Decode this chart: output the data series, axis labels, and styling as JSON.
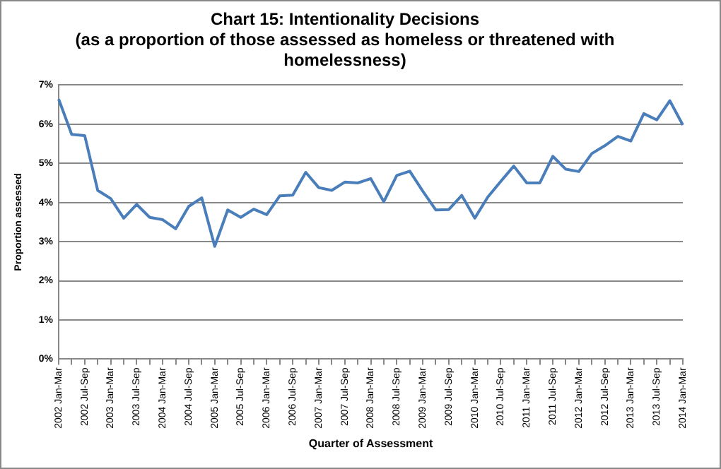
{
  "chart_data": {
    "type": "line",
    "title": "Chart 15: Intentionality Decisions",
    "subtitle": "(as a proportion of those assessed as homeless or threatened with homelessness)",
    "xlabel": "Quarter of Assessment",
    "ylabel": "Proportion assessed",
    "categories": [
      "2002 Jan-Mar",
      null,
      "2002 Jul-Sep",
      null,
      "2003 Jan-Mar",
      null,
      "2003 Jul-Sep",
      null,
      "2004 Jan-Mar",
      null,
      "2004 Jul-Sep",
      null,
      "2005 Jan-Mar",
      null,
      "2005 Jul-Sep",
      null,
      "2006 Jan-Mar",
      null,
      "2006 Jul-Sep",
      null,
      "2007 Jan-Mar",
      null,
      "2007 Jul-Sep",
      null,
      "2008 Jan-Mar",
      null,
      "2008 Jul-Sep",
      null,
      "2009 Jan-Mar",
      null,
      "2009 Jul-Sep",
      null,
      "2010 Jan-Mar",
      null,
      "2010 Jul-Sep",
      null,
      "2011 Jan-Mar",
      null,
      "2011 Jul-Sep",
      null,
      "2012 Jan-Mar",
      null,
      "2012 Jul-Sep",
      null,
      "2013 Jan-Mar",
      null,
      "2013 Jul-Sep",
      null,
      "2014 Jan-Mar"
    ],
    "series": [
      {
        "color": "#4a7ebb",
        "values": [
          6.64,
          5.74,
          5.71,
          4.31,
          4.1,
          3.6,
          3.95,
          3.62,
          3.56,
          3.33,
          3.9,
          4.12,
          2.88,
          3.81,
          3.62,
          3.83,
          3.69,
          4.17,
          4.19,
          4.77,
          4.38,
          4.31,
          4.52,
          4.5,
          4.61,
          4.02,
          4.69,
          4.8,
          4.29,
          3.81,
          3.82,
          4.18,
          3.6,
          4.14,
          4.54,
          4.93,
          4.5,
          4.5,
          5.18,
          4.85,
          4.79,
          5.25,
          5.45,
          5.69,
          5.57,
          6.27,
          6.11,
          6.6,
          5.98
        ]
      }
    ],
    "ylim": [
      0,
      7
    ],
    "yticks": [
      {
        "value": 0,
        "label": "0%"
      },
      {
        "value": 1,
        "label": "1%"
      },
      {
        "value": 2,
        "label": "2%"
      },
      {
        "value": 3,
        "label": "3%"
      },
      {
        "value": 4,
        "label": "4%"
      },
      {
        "value": 5,
        "label": "5%"
      },
      {
        "value": 6,
        "label": "6%"
      },
      {
        "value": 7,
        "label": "7%"
      }
    ],
    "grid": "y",
    "legend": false,
    "marker": "none",
    "line_style": "solid"
  }
}
